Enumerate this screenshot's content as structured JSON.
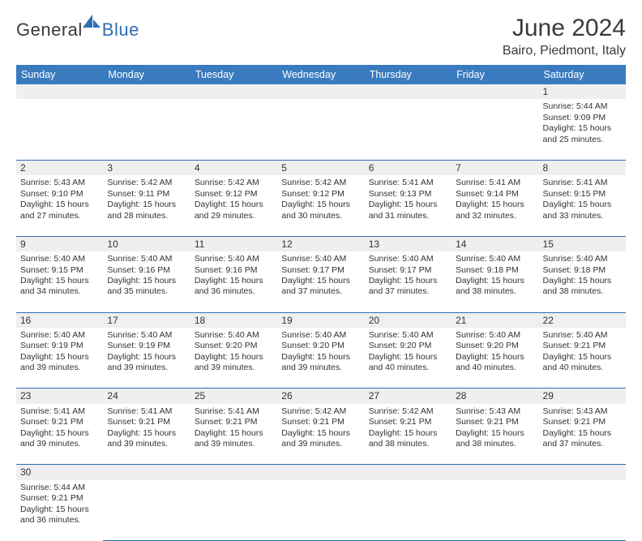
{
  "brand": {
    "text_dark": "General",
    "text_blue": "Blue"
  },
  "title": "June 2024",
  "location": "Bairo, Piedmont, Italy",
  "colors": {
    "header_bg": "#3a7bbf",
    "header_text": "#ffffff",
    "rule": "#2f6fb3",
    "daynum_bg": "#efefef",
    "text": "#333333",
    "brand_blue": "#2f6fb3",
    "brand_dark": "#3a3a3a"
  },
  "typography": {
    "title_fontsize": 30,
    "location_fontsize": 16,
    "header_fontsize": 12.5,
    "cell_fontsize": 10.5,
    "daynum_fontsize": 12
  },
  "day_headers": [
    "Sunday",
    "Monday",
    "Tuesday",
    "Wednesday",
    "Thursday",
    "Friday",
    "Saturday"
  ],
  "weeks": [
    [
      null,
      null,
      null,
      null,
      null,
      null,
      {
        "n": "1",
        "sunrise": "5:44 AM",
        "sunset": "9:09 PM",
        "dl1": "Daylight: 15 hours",
        "dl2": "and 25 minutes."
      }
    ],
    [
      {
        "n": "2",
        "sunrise": "5:43 AM",
        "sunset": "9:10 PM",
        "dl1": "Daylight: 15 hours",
        "dl2": "and 27 minutes."
      },
      {
        "n": "3",
        "sunrise": "5:42 AM",
        "sunset": "9:11 PM",
        "dl1": "Daylight: 15 hours",
        "dl2": "and 28 minutes."
      },
      {
        "n": "4",
        "sunrise": "5:42 AM",
        "sunset": "9:12 PM",
        "dl1": "Daylight: 15 hours",
        "dl2": "and 29 minutes."
      },
      {
        "n": "5",
        "sunrise": "5:42 AM",
        "sunset": "9:12 PM",
        "dl1": "Daylight: 15 hours",
        "dl2": "and 30 minutes."
      },
      {
        "n": "6",
        "sunrise": "5:41 AM",
        "sunset": "9:13 PM",
        "dl1": "Daylight: 15 hours",
        "dl2": "and 31 minutes."
      },
      {
        "n": "7",
        "sunrise": "5:41 AM",
        "sunset": "9:14 PM",
        "dl1": "Daylight: 15 hours",
        "dl2": "and 32 minutes."
      },
      {
        "n": "8",
        "sunrise": "5:41 AM",
        "sunset": "9:15 PM",
        "dl1": "Daylight: 15 hours",
        "dl2": "and 33 minutes."
      }
    ],
    [
      {
        "n": "9",
        "sunrise": "5:40 AM",
        "sunset": "9:15 PM",
        "dl1": "Daylight: 15 hours",
        "dl2": "and 34 minutes."
      },
      {
        "n": "10",
        "sunrise": "5:40 AM",
        "sunset": "9:16 PM",
        "dl1": "Daylight: 15 hours",
        "dl2": "and 35 minutes."
      },
      {
        "n": "11",
        "sunrise": "5:40 AM",
        "sunset": "9:16 PM",
        "dl1": "Daylight: 15 hours",
        "dl2": "and 36 minutes."
      },
      {
        "n": "12",
        "sunrise": "5:40 AM",
        "sunset": "9:17 PM",
        "dl1": "Daylight: 15 hours",
        "dl2": "and 37 minutes."
      },
      {
        "n": "13",
        "sunrise": "5:40 AM",
        "sunset": "9:17 PM",
        "dl1": "Daylight: 15 hours",
        "dl2": "and 37 minutes."
      },
      {
        "n": "14",
        "sunrise": "5:40 AM",
        "sunset": "9:18 PM",
        "dl1": "Daylight: 15 hours",
        "dl2": "and 38 minutes."
      },
      {
        "n": "15",
        "sunrise": "5:40 AM",
        "sunset": "9:18 PM",
        "dl1": "Daylight: 15 hours",
        "dl2": "and 38 minutes."
      }
    ],
    [
      {
        "n": "16",
        "sunrise": "5:40 AM",
        "sunset": "9:19 PM",
        "dl1": "Daylight: 15 hours",
        "dl2": "and 39 minutes."
      },
      {
        "n": "17",
        "sunrise": "5:40 AM",
        "sunset": "9:19 PM",
        "dl1": "Daylight: 15 hours",
        "dl2": "and 39 minutes."
      },
      {
        "n": "18",
        "sunrise": "5:40 AM",
        "sunset": "9:20 PM",
        "dl1": "Daylight: 15 hours",
        "dl2": "and 39 minutes."
      },
      {
        "n": "19",
        "sunrise": "5:40 AM",
        "sunset": "9:20 PM",
        "dl1": "Daylight: 15 hours",
        "dl2": "and 39 minutes."
      },
      {
        "n": "20",
        "sunrise": "5:40 AM",
        "sunset": "9:20 PM",
        "dl1": "Daylight: 15 hours",
        "dl2": "and 40 minutes."
      },
      {
        "n": "21",
        "sunrise": "5:40 AM",
        "sunset": "9:20 PM",
        "dl1": "Daylight: 15 hours",
        "dl2": "and 40 minutes."
      },
      {
        "n": "22",
        "sunrise": "5:40 AM",
        "sunset": "9:21 PM",
        "dl1": "Daylight: 15 hours",
        "dl2": "and 40 minutes."
      }
    ],
    [
      {
        "n": "23",
        "sunrise": "5:41 AM",
        "sunset": "9:21 PM",
        "dl1": "Daylight: 15 hours",
        "dl2": "and 39 minutes."
      },
      {
        "n": "24",
        "sunrise": "5:41 AM",
        "sunset": "9:21 PM",
        "dl1": "Daylight: 15 hours",
        "dl2": "and 39 minutes."
      },
      {
        "n": "25",
        "sunrise": "5:41 AM",
        "sunset": "9:21 PM",
        "dl1": "Daylight: 15 hours",
        "dl2": "and 39 minutes."
      },
      {
        "n": "26",
        "sunrise": "5:42 AM",
        "sunset": "9:21 PM",
        "dl1": "Daylight: 15 hours",
        "dl2": "and 39 minutes."
      },
      {
        "n": "27",
        "sunrise": "5:42 AM",
        "sunset": "9:21 PM",
        "dl1": "Daylight: 15 hours",
        "dl2": "and 38 minutes."
      },
      {
        "n": "28",
        "sunrise": "5:43 AM",
        "sunset": "9:21 PM",
        "dl1": "Daylight: 15 hours",
        "dl2": "and 38 minutes."
      },
      {
        "n": "29",
        "sunrise": "5:43 AM",
        "sunset": "9:21 PM",
        "dl1": "Daylight: 15 hours",
        "dl2": "and 37 minutes."
      }
    ],
    [
      {
        "n": "30",
        "sunrise": "5:44 AM",
        "sunset": "9:21 PM",
        "dl1": "Daylight: 15 hours",
        "dl2": "and 36 minutes."
      },
      null,
      null,
      null,
      null,
      null,
      null
    ]
  ],
  "labels": {
    "sunrise_prefix": "Sunrise: ",
    "sunset_prefix": "Sunset: "
  }
}
